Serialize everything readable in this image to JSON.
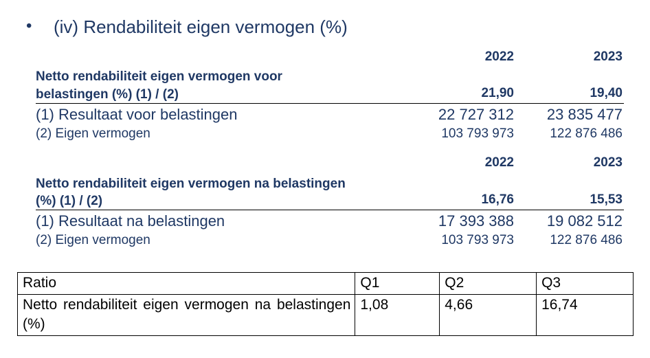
{
  "heading": {
    "bullet": "•",
    "title": "(iv) Rendabiliteit eigen vermogen (%)"
  },
  "section1": {
    "year_a": "2022",
    "year_b": "2023",
    "title_line1": "Netto rendabiliteit eigen vermogen voor",
    "title_line2": "belastingen (%) (1) / (2)",
    "ratio_a": "21,90",
    "ratio_b": "19,40",
    "row1": {
      "label": "(1) Resultaat voor belastingen",
      "a": "22 727 312",
      "b": "23 835 477"
    },
    "row2": {
      "label": "(2) Eigen vermogen",
      "a": "103 793 973",
      "b": "122 876 486"
    }
  },
  "section2": {
    "year_a": "2022",
    "year_b": "2023",
    "title_line1": "Netto rendabiliteit eigen vermogen na belastingen",
    "title_line2": "(%) (1) / (2)",
    "ratio_a": "16,76",
    "ratio_b": "15,53",
    "row1": {
      "label": "(1) Resultaat na belastingen",
      "a": "17 393 388",
      "b": "19 082 512"
    },
    "row2": {
      "label": "(2) Eigen vermogen",
      "a": "103 793 973",
      "b": "122 876 486"
    }
  },
  "benchmark": {
    "headers": [
      "Ratio",
      "Q1",
      "Q2",
      "Q3"
    ],
    "row": {
      "label": "Netto rendabiliteit eigen vermogen na belastingen (%)",
      "q1": "1,08",
      "q2": "4,66",
      "q3": "16,74"
    }
  },
  "colors": {
    "heading_text": "#1f3864"
  }
}
